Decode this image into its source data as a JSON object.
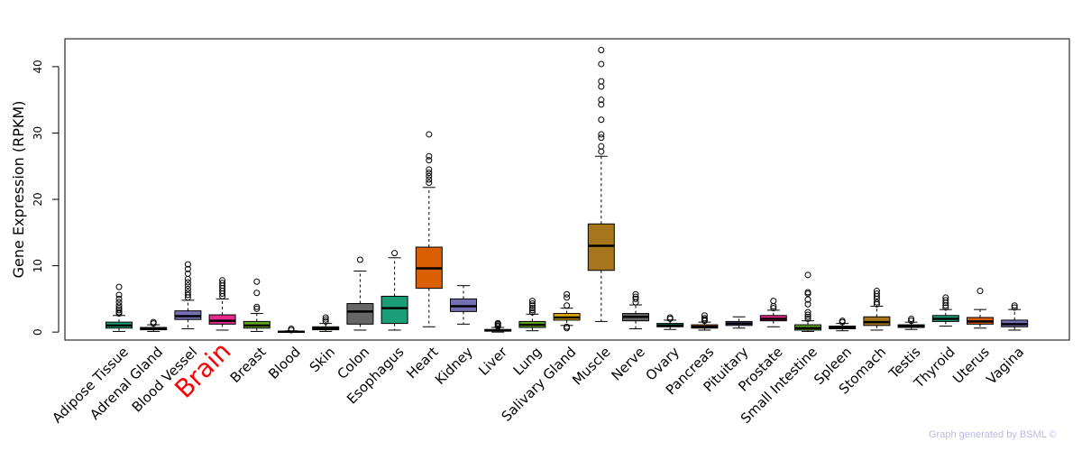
{
  "chart_data": {
    "type": "boxplot",
    "title": "",
    "xlabel": "",
    "ylabel": "Gene Expression (RPKM)",
    "ylim": [
      -1.2,
      44.2
    ],
    "yticks": [
      0,
      10,
      20,
      30,
      40
    ],
    "highlight_category": "Brain",
    "highlight_color": "#ff0000",
    "categories": [
      {
        "name": "Adipose Tissue",
        "color": "#1b9e77",
        "q1": 0.6,
        "median": 1.0,
        "q3": 1.5,
        "whisker_low": 0.1,
        "whisker_high": 2.5,
        "outliers": [
          2.8,
          3.0,
          3.3,
          3.6,
          4.0,
          4.5,
          5.0,
          5.6,
          6.8
        ]
      },
      {
        "name": "Adrenal Gland",
        "color": "#d95f02",
        "q1": 0.35,
        "median": 0.5,
        "q3": 0.7,
        "whisker_low": 0.1,
        "whisker_high": 1.1,
        "outliers": [
          1.3,
          1.5
        ]
      },
      {
        "name": "Blood Vessel",
        "color": "#7570b3",
        "q1": 1.9,
        "median": 2.4,
        "q3": 3.2,
        "whisker_low": 0.5,
        "whisker_high": 4.8,
        "outliers": [
          5.2,
          5.6,
          6.0,
          6.5,
          7.0,
          7.5,
          8.0,
          8.8,
          9.5,
          10.2
        ]
      },
      {
        "name": "Brain",
        "color": "#e7298a",
        "q1": 1.2,
        "median": 1.7,
        "q3": 2.6,
        "whisker_low": 0.3,
        "whisker_high": 5.0,
        "outliers": [
          5.4,
          5.8,
          6.2,
          6.6,
          7.0,
          7.4,
          7.8
        ]
      },
      {
        "name": "Breast",
        "color": "#66a61e",
        "q1": 0.6,
        "median": 1.0,
        "q3": 1.6,
        "whisker_low": 0.1,
        "whisker_high": 2.8,
        "outliers": [
          3.5,
          3.8,
          5.9,
          7.6
        ]
      },
      {
        "name": "Blood",
        "color": "#e6ab02",
        "q1": 0.02,
        "median": 0.05,
        "q3": 0.1,
        "whisker_low": 0.0,
        "whisker_high": 0.2,
        "outliers": [
          0.3,
          0.5
        ]
      },
      {
        "name": "Skin",
        "color": "#a6761d",
        "q1": 0.35,
        "median": 0.55,
        "q3": 0.8,
        "whisker_low": 0.1,
        "whisker_high": 1.3,
        "outliers": [
          1.6,
          1.9,
          2.2
        ]
      },
      {
        "name": "Colon",
        "color": "#666666",
        "q1": 1.2,
        "median": 3.1,
        "q3": 4.3,
        "whisker_low": 0.3,
        "whisker_high": 9.2,
        "outliers": [
          10.9
        ]
      },
      {
        "name": "Esophagus",
        "color": "#1b9e77",
        "q1": 1.3,
        "median": 3.6,
        "q3": 5.4,
        "whisker_low": 0.3,
        "whisker_high": 11.2,
        "outliers": [
          11.9
        ]
      },
      {
        "name": "Heart",
        "color": "#d95f02",
        "q1": 6.6,
        "median": 9.6,
        "q3": 12.8,
        "whisker_low": 0.8,
        "whisker_high": 21.8,
        "outliers": [
          22.5,
          23.0,
          23.5,
          24.0,
          24.5,
          25.9,
          26.5,
          29.8
        ]
      },
      {
        "name": "Kidney",
        "color": "#7570b3",
        "q1": 3.1,
        "median": 3.9,
        "q3": 5.0,
        "whisker_low": 1.2,
        "whisker_high": 7.0,
        "outliers": []
      },
      {
        "name": "Liver",
        "color": "#e7298a",
        "q1": 0.15,
        "median": 0.25,
        "q3": 0.4,
        "whisker_low": 0.0,
        "whisker_high": 0.7,
        "outliers": [
          0.85,
          1.0,
          1.2,
          1.35
        ]
      },
      {
        "name": "Lung",
        "color": "#66a61e",
        "q1": 0.7,
        "median": 1.1,
        "q3": 1.6,
        "whisker_low": 0.2,
        "whisker_high": 2.7,
        "outliers": [
          3.0,
          3.3,
          3.6,
          4.0,
          4.3,
          4.7
        ]
      },
      {
        "name": "Salivary Gland",
        "color": "#e6ab02",
        "q1": 1.8,
        "median": 2.2,
        "q3": 2.8,
        "whisker_low": 1.0,
        "whisker_high": 3.6,
        "outliers": [
          0.6,
          0.8,
          4.0,
          5.2,
          5.7
        ]
      },
      {
        "name": "Muscle",
        "color": "#a6761d",
        "q1": 9.3,
        "median": 13.0,
        "q3": 16.3,
        "whisker_low": 1.6,
        "whisker_high": 26.5,
        "outliers": [
          27.2,
          28.0,
          29.3,
          29.8,
          32.0,
          34.3,
          35.0,
          37.0,
          37.8,
          40.4,
          42.5
        ]
      },
      {
        "name": "Nerve",
        "color": "#666666",
        "q1": 1.7,
        "median": 2.3,
        "q3": 2.8,
        "whisker_low": 0.5,
        "whisker_high": 4.1,
        "outliers": [
          4.5,
          5.0,
          5.3,
          5.7
        ]
      },
      {
        "name": "Ovary",
        "color": "#1b9e77",
        "q1": 0.8,
        "median": 1.0,
        "q3": 1.3,
        "whisker_low": 0.4,
        "whisker_high": 1.8,
        "outliers": [
          2.0,
          2.2
        ]
      },
      {
        "name": "Pancreas",
        "color": "#d95f02",
        "q1": 0.6,
        "median": 0.8,
        "q3": 1.1,
        "whisker_low": 0.3,
        "whisker_high": 1.5,
        "outliers": [
          1.7,
          1.9,
          2.1,
          2.5
        ]
      },
      {
        "name": "Pituitary",
        "color": "#7570b3",
        "q1": 1.0,
        "median": 1.3,
        "q3": 1.6,
        "whisker_low": 0.6,
        "whisker_high": 2.3,
        "outliers": []
      },
      {
        "name": "Prostate",
        "color": "#e7298a",
        "q1": 1.7,
        "median": 2.0,
        "q3": 2.5,
        "whisker_low": 0.8,
        "whisker_high": 3.3,
        "outliers": [
          3.6,
          3.9,
          4.7
        ]
      },
      {
        "name": "Small Intestine",
        "color": "#66a61e",
        "q1": 0.3,
        "median": 0.6,
        "q3": 1.1,
        "whisker_low": 0.1,
        "whisker_high": 1.7,
        "outliers": [
          2.0,
          2.3,
          2.6,
          3.0,
          4.2,
          4.9,
          5.8,
          6.0,
          8.6
        ]
      },
      {
        "name": "Spleen",
        "color": "#e6ab02",
        "q1": 0.5,
        "median": 0.7,
        "q3": 0.9,
        "whisker_low": 0.2,
        "whisker_high": 1.3,
        "outliers": [
          1.5,
          1.7
        ]
      },
      {
        "name": "Stomach",
        "color": "#a6761d",
        "q1": 1.0,
        "median": 1.5,
        "q3": 2.3,
        "whisker_low": 0.3,
        "whisker_high": 3.9,
        "outliers": [
          4.2,
          4.5,
          5.0,
          5.4,
          5.8,
          6.2
        ]
      },
      {
        "name": "Testis",
        "color": "#666666",
        "q1": 0.7,
        "median": 0.9,
        "q3": 1.1,
        "whisker_low": 0.4,
        "whisker_high": 1.5,
        "outliers": [
          1.7,
          2.0
        ]
      },
      {
        "name": "Thyroid",
        "color": "#1b9e77",
        "q1": 1.6,
        "median": 2.0,
        "q3": 2.5,
        "whisker_low": 0.9,
        "whisker_high": 3.4,
        "outliers": [
          3.7,
          4.0,
          4.4,
          4.8,
          5.2
        ]
      },
      {
        "name": "Uterus",
        "color": "#d95f02",
        "q1": 1.2,
        "median": 1.6,
        "q3": 2.2,
        "whisker_low": 0.6,
        "whisker_high": 3.4,
        "outliers": [
          6.2
        ]
      },
      {
        "name": "Vagina",
        "color": "#7570b3",
        "q1": 0.8,
        "median": 1.2,
        "q3": 1.8,
        "whisker_low": 0.3,
        "whisker_high": 3.4,
        "outliers": [
          3.7,
          4.0
        ]
      }
    ]
  },
  "footer": {
    "credit": "Graph generated by BSML ©"
  }
}
